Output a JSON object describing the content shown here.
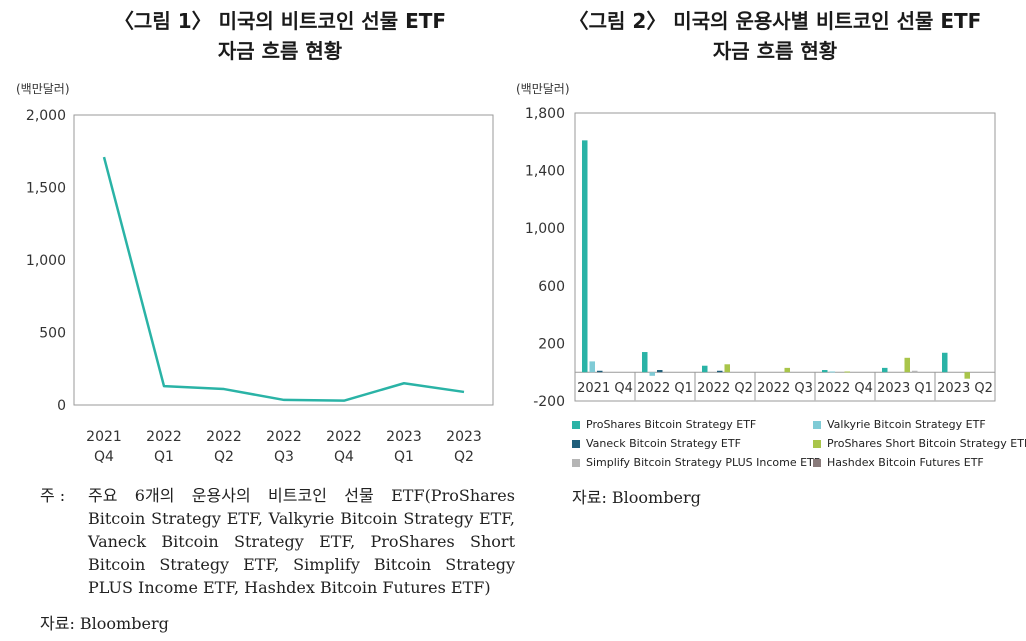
{
  "figure1": {
    "title_line1": "〈그림 1〉 미국의 비트코인 선물 ETF",
    "title_line2": "자금 흐름 현황",
    "unit": "(백만달러)",
    "note_label": "주 :",
    "note_text": "주요 6개의 운용사의 비트코인 선물 ETF(ProShares Bitcoin Strategy ETF, Valkyrie Bitcoin Strategy ETF, Vaneck Bitcoin Strategy ETF, ProShares Short Bitcoin Strategy ETF, Simplify Bitcoin Strategy PLUS Income ETF, Hashdex Bitcoin Futures ETF)",
    "source": "자료: Bloomberg"
  },
  "figure2": {
    "title_line1": "〈그림 2〉 미국의 운용사별 비트코인 선물 ETF",
    "title_line2": "자금 흐름 현황",
    "unit": "(백만달러)",
    "source": "자료: Bloomberg"
  },
  "chart_data": [
    {
      "type": "line",
      "categories": [
        "2021 Q4",
        "2022 Q1",
        "2022 Q2",
        "2022 Q3",
        "2022 Q4",
        "2023 Q1",
        "2023 Q2"
      ],
      "category_lines": [
        [
          "2021",
          "Q4"
        ],
        [
          "2022",
          "Q1"
        ],
        [
          "2022",
          "Q2"
        ],
        [
          "2022",
          "Q3"
        ],
        [
          "2022",
          "Q4"
        ],
        [
          "2023",
          "Q1"
        ],
        [
          "2023",
          "Q2"
        ]
      ],
      "series": [
        {
          "values": [
            1710,
            130,
            110,
            35,
            30,
            150,
            90
          ],
          "color": "#2ab3a6"
        }
      ],
      "ylim": [
        0,
        2000
      ],
      "yticks": [
        0,
        500,
        1000,
        1500,
        2000
      ],
      "ytick_labels": [
        "0",
        "500",
        "1,000",
        "1,500",
        "2,000"
      ],
      "grid": false
    },
    {
      "type": "bar",
      "categories": [
        "2021 Q4",
        "2022 Q1",
        "2022 Q2",
        "2022 Q3",
        "2022 Q4",
        "2023 Q1",
        "2023 Q2"
      ],
      "series": [
        {
          "name": "ProShares Bitcoin Strategy ETF",
          "color": "#2ab3a6",
          "values": [
            1610,
            140,
            45,
            0,
            15,
            30,
            135
          ]
        },
        {
          "name": "Valkyrie Bitcoin Strategy ETF",
          "color": "#7fcbd6",
          "values": [
            75,
            -25,
            0,
            0,
            5,
            0,
            0
          ]
        },
        {
          "name": "Vaneck Bitcoin Strategy ETF",
          "color": "#1f5e7a",
          "values": [
            10,
            15,
            10,
            0,
            0,
            0,
            0
          ]
        },
        {
          "name": "ProShares Short Bitcoin Strategy ETF",
          "color": "#a9c54a",
          "values": [
            0,
            0,
            55,
            30,
            5,
            100,
            -45
          ]
        },
        {
          "name": "Simplify Bitcoin Strategy PLUS Income ETF",
          "color": "#b5b5b5",
          "values": [
            0,
            0,
            0,
            0,
            0,
            10,
            0
          ]
        },
        {
          "name": "Hashdex Bitcoin Futures ETF",
          "color": "#8a7b7b",
          "values": [
            0,
            0,
            0,
            0,
            0,
            0,
            0
          ]
        }
      ],
      "ylim": [
        -200,
        1800
      ],
      "yticks": [
        -200,
        200,
        600,
        1000,
        1400,
        1800
      ],
      "ytick_labels": [
        "-200",
        "200",
        "600",
        "1,000",
        "1,400",
        "1,800"
      ],
      "legend": "bottom",
      "grid": false
    }
  ]
}
